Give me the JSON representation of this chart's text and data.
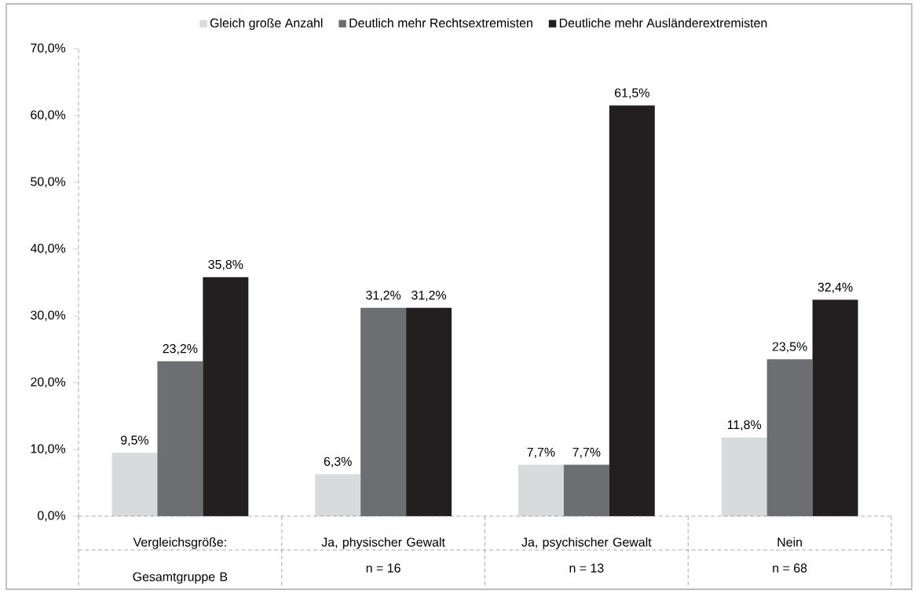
{
  "chart_data": {
    "type": "bar",
    "categories": [
      "Vergleichsgröße: Gesamtgruppe B",
      "Ja, physischer Gewalt",
      "Ja, psychischer Gewalt",
      "Nein"
    ],
    "annotations": [
      null,
      "n = 16",
      "n = 13",
      "n = 68"
    ],
    "series": [
      {
        "name": "Gleich große Anzahl",
        "color": "#d9dadc",
        "values": [
          9.5,
          6.3,
          7.7,
          11.8
        ],
        "value_labels": [
          "9,5%",
          "6,3%",
          "7,7%",
          "11,8%"
        ]
      },
      {
        "name": "Deutlich mehr Rechtsextremisten",
        "color": "#6d6e71",
        "values": [
          23.2,
          31.2,
          7.7,
          23.5
        ],
        "value_labels": [
          "23,2%",
          "31,2%",
          "7,7%",
          "23,5%"
        ]
      },
      {
        "name": "Deutliche mehr Ausländerextremisten",
        "color": "#231f20",
        "values": [
          35.8,
          31.2,
          61.5,
          32.4
        ],
        "value_labels": [
          "35,8%",
          "31,2%",
          "61,5%",
          "32,4%"
        ]
      }
    ],
    "ylim": [
      0,
      70
    ],
    "yticks": [
      {
        "value": 0,
        "label": "0,0%"
      },
      {
        "value": 10,
        "label": "10,0%"
      },
      {
        "value": 20,
        "label": "20,0%"
      },
      {
        "value": 30,
        "label": "30,0%"
      },
      {
        "value": 40,
        "label": "40,0%"
      },
      {
        "value": 50,
        "label": "50,0%"
      },
      {
        "value": 60,
        "label": "60,0%"
      },
      {
        "value": 70,
        "label": "70,0%"
      }
    ],
    "legend": "top",
    "grid": false
  }
}
